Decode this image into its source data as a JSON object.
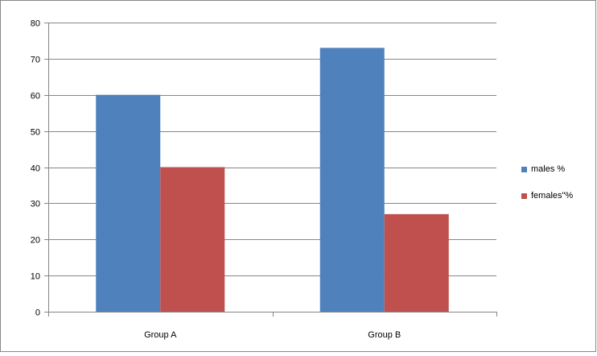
{
  "chart_data": {
    "type": "bar",
    "categories": [
      "Group A",
      "Group B"
    ],
    "series": [
      {
        "name": "males %",
        "values": [
          60,
          73
        ],
        "color": "#4F81BD"
      },
      {
        "name": "females\"%",
        "values": [
          40,
          27
        ],
        "color": "#C0504D"
      }
    ],
    "ylim": [
      0,
      80
    ],
    "yticks": [
      "0",
      "10",
      "20",
      "30",
      "40",
      "50",
      "60",
      "70",
      "80"
    ],
    "grid": true,
    "legend": "right"
  }
}
